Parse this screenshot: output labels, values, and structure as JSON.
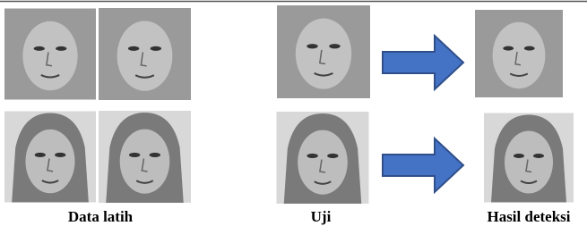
{
  "figure": {
    "columns": [
      {
        "label": "Data latih"
      },
      {
        "label": "Uji"
      },
      {
        "label": "Hasil deteksi"
      }
    ]
  }
}
